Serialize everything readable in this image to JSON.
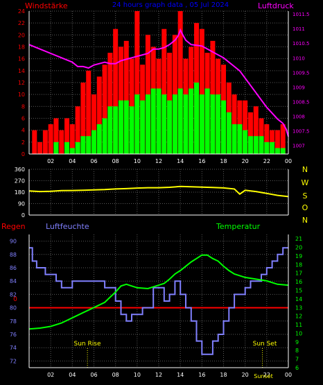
{
  "header": {
    "left_label": "Windstärke",
    "center_title": "24 hours graph data , 05 Jul 2024",
    "right_label": "Luftdruck"
  },
  "wind_axis_ticks": [
    "0",
    "2",
    "4",
    "6",
    "8",
    "10",
    "12",
    "14",
    "16",
    "18",
    "20",
    "22",
    "24"
  ],
  "pressure_axis_ticks": [
    "1007",
    "1007.5",
    "1008",
    "1008.5",
    "1009",
    "1009.5",
    "1010",
    "1010.5",
    "1011",
    "1011.5"
  ],
  "x_ticks": [
    "02",
    "04",
    "06",
    "08",
    "10",
    "12",
    "14",
    "16",
    "18",
    "20",
    "22",
    "00"
  ],
  "direction_axis_ticks": [
    "0",
    "90",
    "180",
    "270",
    "360"
  ],
  "direction_side_labels": [
    "N",
    "W",
    "S",
    "O",
    "N"
  ],
  "bottom_labels": {
    "left": "Regen",
    "humidity": "Luftfeuchte",
    "temperature": "Temperatur",
    "sunrise": "Sun Rise",
    "sunset": "Sun Set",
    "sunset_bottom": "Sunset"
  },
  "humidity_axis_ticks": [
    "72",
    "74",
    "76",
    "78",
    "80",
    "82",
    "84",
    "86",
    "88",
    "90"
  ],
  "temperature_axis_ticks": [
    "6",
    "7",
    "8",
    "9",
    "10",
    "11",
    "12",
    "13",
    "14",
    "15",
    "16",
    "17",
    "18",
    "19",
    "20",
    "21"
  ],
  "rain_marker": "0",
  "colors": {
    "background": "#000000",
    "wind_label": "#ff0000",
    "title": "#0000ff",
    "pressure": "#ff00ff",
    "gust": "#ff0000",
    "wind_mean": "#00ff00",
    "wind_min": "#000000",
    "direction": "#ffff00",
    "direction_labels": "#ffff00",
    "humidity": "#8080ff",
    "temperature": "#00ff00",
    "rain": "#ff0000",
    "grid": "#5a5a5a",
    "axis": "#ffffff",
    "sun": "#ffff00"
  },
  "chart_data": [
    {
      "type": "bar",
      "name": "wind-and-pressure",
      "x_unit": "hour",
      "x_range": [
        0,
        24
      ],
      "ylim_left": [
        0,
        24
      ],
      "ylim_right": [
        1006.7,
        1011.6
      ],
      "ylabel_left": "Windstärke",
      "ylabel_right": "Luftdruck",
      "grid": true,
      "series": [
        {
          "name": "Luftdruck",
          "kind": "line",
          "axis": "right",
          "x": [
            0,
            1,
            2,
            3,
            4,
            4.5,
            5,
            5.5,
            6,
            6.5,
            7,
            7.5,
            8,
            8.5,
            9,
            9.5,
            10,
            10.5,
            11,
            11.5,
            12,
            12.5,
            13,
            13.5,
            13.8,
            14,
            14.2,
            14.5,
            15,
            16,
            17,
            17.5,
            18,
            18.5,
            19,
            19.5,
            20,
            20.5,
            21,
            21.5,
            22,
            22.5,
            23,
            23.5,
            23.8,
            24
          ],
          "values": [
            1010.45,
            1010.3,
            1010.15,
            1010.0,
            1009.85,
            1009.7,
            1009.7,
            1009.65,
            1009.75,
            1009.8,
            1009.85,
            1009.8,
            1009.8,
            1009.9,
            1009.95,
            1010.0,
            1010.05,
            1010.1,
            1010.15,
            1010.3,
            1010.3,
            1010.35,
            1010.45,
            1010.6,
            1010.75,
            1010.95,
            1010.8,
            1010.6,
            1010.45,
            1010.4,
            1010.2,
            1010.1,
            1010.0,
            1009.85,
            1009.7,
            1009.55,
            1009.3,
            1009.05,
            1008.8,
            1008.55,
            1008.3,
            1008.1,
            1007.9,
            1007.75,
            1007.55,
            1007.3
          ]
        },
        {
          "name": "Böen",
          "kind": "bar",
          "axis": "left",
          "x": [
            0.5,
            1,
            1.5,
            2,
            2.5,
            3,
            3.5,
            4,
            4.5,
            5,
            5.5,
            6,
            6.5,
            7,
            7.5,
            8,
            8.5,
            9,
            9.5,
            10,
            10.5,
            11,
            11.5,
            12,
            12.5,
            13,
            13.5,
            14,
            14.5,
            15,
            15.5,
            16,
            16.5,
            17,
            17.5,
            18,
            18.5,
            19,
            19.5,
            20,
            20.5,
            21,
            21.5,
            22,
            22.5,
            23,
            23.5
          ],
          "values": [
            4,
            2,
            4,
            5,
            6,
            4,
            6,
            5,
            8,
            12,
            14,
            10,
            13,
            15,
            17,
            21,
            18,
            19,
            16,
            24,
            15,
            20,
            18,
            16,
            21,
            17,
            20,
            24,
            16,
            18,
            22,
            21,
            17,
            19,
            16,
            15,
            12,
            10,
            9,
            9,
            7,
            8,
            6,
            5,
            4,
            4,
            5
          ]
        },
        {
          "name": "Mittelwind",
          "kind": "bar",
          "axis": "left",
          "x": [
            0.5,
            1,
            1.5,
            2,
            2.5,
            3,
            3.5,
            4,
            4.5,
            5,
            5.5,
            6,
            6.5,
            7,
            7.5,
            8,
            8.5,
            9,
            9.5,
            10,
            10.5,
            11,
            11.5,
            12,
            12.5,
            13,
            13.5,
            14,
            14.5,
            15,
            15.5,
            16,
            16.5,
            17,
            17.5,
            18,
            18.5,
            19,
            19.5,
            20,
            20.5,
            21,
            21.5,
            22,
            22.5,
            23,
            23.5
          ],
          "values": [
            0,
            0,
            0,
            0,
            2,
            0,
            2,
            1,
            2,
            3,
            3,
            4,
            5,
            6,
            8,
            8,
            9,
            9,
            8,
            10,
            9,
            10,
            11,
            11,
            10,
            9,
            10,
            11,
            10,
            11,
            12,
            10,
            11,
            10,
            10,
            9,
            7,
            5,
            5,
            4,
            3,
            3,
            3,
            2,
            2,
            1,
            1
          ]
        }
      ]
    },
    {
      "type": "line",
      "name": "wind-direction",
      "x_unit": "hour",
      "x_range": [
        0,
        24
      ],
      "ylim": [
        0,
        360
      ],
      "grid": true,
      "series": [
        {
          "name": "Windrichtung",
          "x": [
            0,
            1,
            2,
            3,
            4,
            5,
            6,
            7,
            8,
            9,
            10,
            11,
            12,
            13,
            14,
            15,
            16,
            17,
            18,
            19,
            19.5,
            20,
            21,
            22,
            23,
            24
          ],
          "values": [
            190,
            185,
            187,
            192,
            193,
            195,
            198,
            200,
            205,
            208,
            212,
            215,
            215,
            218,
            225,
            222,
            220,
            217,
            213,
            205,
            165,
            195,
            185,
            170,
            155,
            145
          ]
        }
      ]
    },
    {
      "type": "line",
      "name": "humidity-temperature-rain",
      "x_unit": "hour",
      "x_range": [
        0,
        24
      ],
      "ylim_left": [
        71,
        91
      ],
      "ylim_right": [
        6,
        21.5
      ],
      "ylabel_left": "Luftfeuchte",
      "ylabel_right": "Temperatur",
      "grid": true,
      "sunrise_hour": 5.4,
      "sunset_hour": 21.6,
      "series": [
        {
          "name": "Luftfeuchte",
          "axis": "left",
          "step": true,
          "x": [
            0,
            0.3,
            0.7,
            1,
            1.5,
            2,
            2.5,
            3,
            3.5,
            4,
            4.5,
            5,
            5.5,
            6,
            6.5,
            7,
            7.5,
            8,
            8.5,
            9,
            9.5,
            10,
            10.5,
            11,
            11.5,
            12,
            12.5,
            13,
            13.5,
            14,
            14.5,
            15,
            15.5,
            16,
            16.5,
            17,
            17.5,
            18,
            18.5,
            19,
            19.5,
            20,
            20.5,
            21,
            21.5,
            22,
            22.5,
            23,
            23.5,
            24
          ],
          "values": [
            89,
            87,
            86,
            86,
            85,
            85,
            84,
            83,
            83,
            84,
            84,
            84,
            84,
            84,
            84,
            83,
            83,
            81,
            79,
            78,
            79,
            79,
            80,
            80,
            83,
            83,
            81,
            82,
            84,
            82,
            80,
            78,
            75,
            73,
            73,
            75,
            76,
            78,
            80,
            82,
            82,
            83,
            84,
            84,
            85,
            86,
            87,
            88,
            89,
            89
          ]
        },
        {
          "name": "Temperatur",
          "axis": "right",
          "x": [
            0,
            1,
            2,
            3,
            4,
            5,
            6,
            7,
            7.5,
            8,
            8.5,
            9,
            10,
            11,
            12,
            12.5,
            13,
            13.5,
            14,
            14.5,
            15,
            15.5,
            16,
            16.5,
            17,
            17.5,
            18,
            18.5,
            19,
            20,
            21,
            22,
            23,
            24
          ],
          "values": [
            10.5,
            10.6,
            10.8,
            11.2,
            11.8,
            12.4,
            13.0,
            13.6,
            14.2,
            14.8,
            15.5,
            15.7,
            15.3,
            15.2,
            15.6,
            15.8,
            16.3,
            16.9,
            17.3,
            17.8,
            18.3,
            18.7,
            19.1,
            19.1,
            18.7,
            18.4,
            17.8,
            17.3,
            16.9,
            16.5,
            16.3,
            16.1,
            15.7,
            15.6
          ]
        },
        {
          "name": "Regen",
          "axis": "left",
          "x": [
            0,
            24
          ],
          "values": [
            80,
            80
          ]
        }
      ]
    }
  ]
}
